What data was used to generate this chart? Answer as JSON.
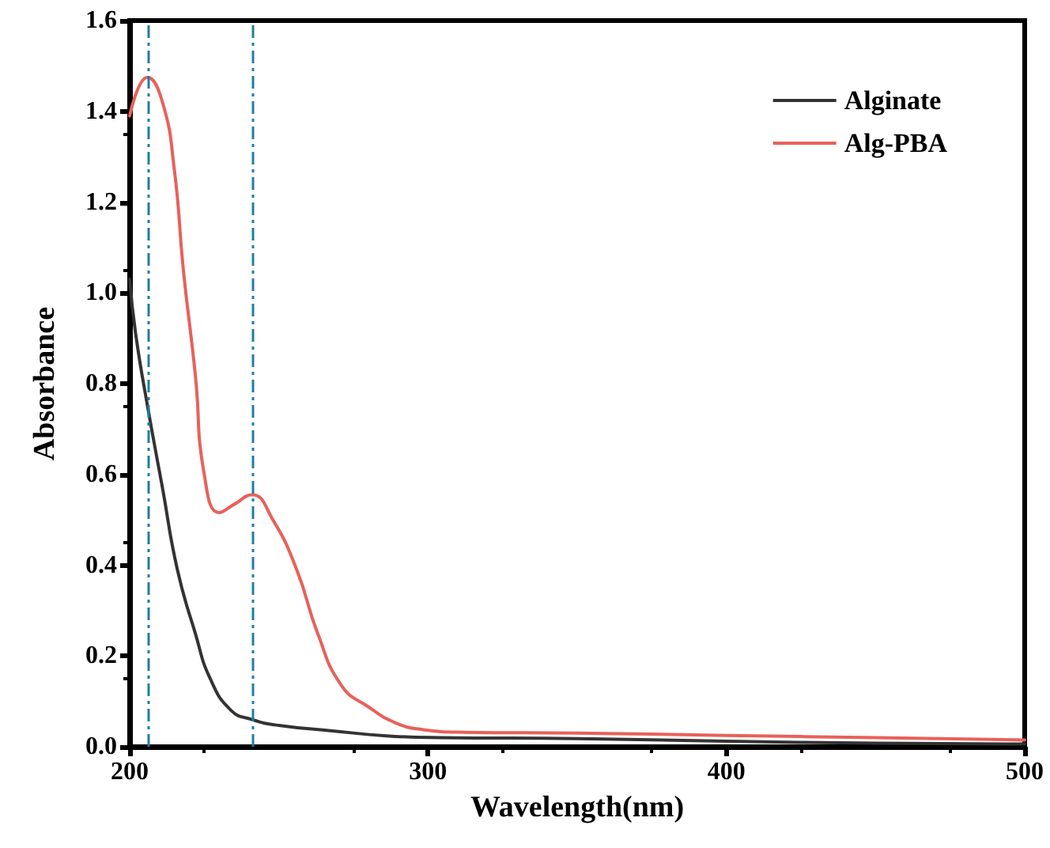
{
  "chart_data": {
    "type": "line",
    "xlabel": "Wavelength(nm)",
    "ylabel": "Absorbance",
    "xlim": [
      200,
      500
    ],
    "xticks": [
      200,
      300,
      400,
      500
    ],
    "ylim": [
      0,
      1.6
    ],
    "yticks": [
      {
        "value": 0,
        "label": "0.0"
      },
      0.2,
      0.4,
      0.6,
      0.8,
      {
        "value": 1,
        "label": "1.0"
      },
      1.2,
      1.4,
      1.6
    ],
    "legend": "top right",
    "grid": false,
    "marker": "none",
    "line_style": "solid",
    "series": [
      {
        "name": "Alginate",
        "color": "#333333",
        "x": [
          200,
          202,
          206,
          211,
          216,
          222,
          227,
          234,
          241,
          250,
          268,
          286,
          304,
          350,
          400,
          450,
          500
        ],
        "values": [
          1.03,
          0.91,
          0.75,
          0.57,
          0.39,
          0.25,
          0.15,
          0.08,
          0.06,
          0.047,
          0.035,
          0.024,
          0.02,
          0.018,
          0.012,
          0.008,
          0.006
        ]
      },
      {
        "name": "Alg-PBA",
        "color": "#e8615a",
        "x": [
          200,
          206,
          211,
          215,
          218,
          222,
          225,
          230,
          235,
          241,
          248,
          256,
          263,
          271,
          280,
          289,
          298,
          312,
          350,
          400,
          450,
          500
        ],
        "values": [
          1.39,
          1.475,
          1.42,
          1.27,
          1.05,
          0.82,
          0.6,
          0.516,
          0.534,
          0.555,
          0.5,
          0.39,
          0.25,
          0.135,
          0.088,
          0.053,
          0.038,
          0.032,
          0.03,
          0.025,
          0.02,
          0.015
        ]
      }
    ],
    "ref_lines": [
      {
        "axis": "x",
        "value": 206,
        "color": "#1f7fa0",
        "line_style": "dashdot"
      },
      {
        "axis": "x",
        "value": 241,
        "color": "#1f7fa0",
        "line_style": "dashdot"
      }
    ]
  }
}
